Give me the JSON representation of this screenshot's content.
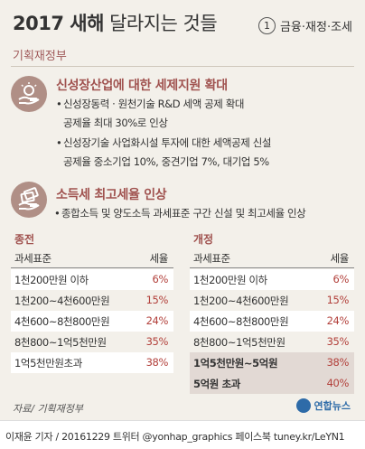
{
  "header": {
    "title_bold": "2017 새해",
    "title_light": "달라지는 것들",
    "sub_num": "1",
    "sub_text": "금융·재정·조세",
    "source_top": "기획재정부"
  },
  "section1": {
    "icon": "lightbulb-hand-icon",
    "title": "신성장산업에 대한 세제지원 확대",
    "bullets": [
      {
        "line1": "신성장동력 · 원천기술 R&D 세액 공제 확대",
        "line2": "공제율 최대 30%로 인상"
      },
      {
        "line1": "신성장기술 사업화시설 투자에 대한 세액공제 신설",
        "line2": "공제율 중소기업 10%, 중견기업 7%, 대기업 5%"
      }
    ]
  },
  "section2": {
    "icon": "money-hand-icon",
    "title": "소득세 최고세율 인상",
    "bullets": [
      {
        "line1": "종합소득 및 양도소득 과세표준 구간 신설 및 최고세율 인상"
      }
    ]
  },
  "table": {
    "before_label": "종전",
    "after_label": "개정",
    "head_key": "과세표준",
    "head_val": "세율",
    "before": [
      {
        "k": "1천200만원 이하",
        "v": "6%"
      },
      {
        "k": "1천200~4천600만원",
        "v": "15%"
      },
      {
        "k": "4천600~8천800만원",
        "v": "24%"
      },
      {
        "k": "8천800~1억5천만원",
        "v": "35%"
      },
      {
        "k": "1억5천만원초과",
        "v": "38%"
      }
    ],
    "after": [
      {
        "k": "1천200만원 이하",
        "v": "6%"
      },
      {
        "k": "1천200~4천600만원",
        "v": "15%"
      },
      {
        "k": "4천600~8천800만원",
        "v": "24%"
      },
      {
        "k": "8천800~1억5천만원",
        "v": "35%"
      },
      {
        "k": "1억5천만원~5억원",
        "v": "38%"
      },
      {
        "k": "5억원 초과",
        "v": "40%"
      }
    ]
  },
  "source_bottom": "자료/ 기획재정부",
  "logo_text": "연합뉴스",
  "footer": "이재윤 기자 / 20161229  트위터 @yonhap_graphics  페이스북 tuney.kr/LeYN1",
  "colors": {
    "accent": "#a0524f",
    "pct": "#b2403b",
    "icon_bg": "#b08f86",
    "bg": "#f3f0ea"
  }
}
